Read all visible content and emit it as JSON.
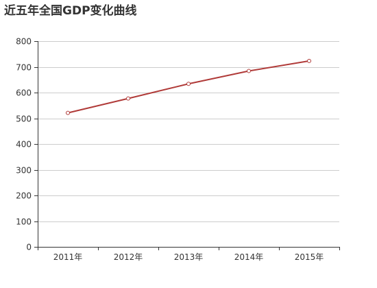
{
  "chart_data": {
    "type": "line",
    "title": "近五年全国GDP变化曲线",
    "categories": [
      "2011年",
      "2012年",
      "2013年",
      "2014年",
      "2015年"
    ],
    "series": [
      {
        "values": [
          521,
          577,
          634,
          684,
          723
        ]
      }
    ],
    "xlabel": "",
    "ylabel": "",
    "ylim": [
      0,
      800
    ],
    "yticks": [
      0,
      100,
      200,
      300,
      400,
      500,
      600,
      700,
      800
    ],
    "grid": true,
    "legend": "none",
    "colors": {
      "line": "#b03a38",
      "marker_fill": "#ffffff",
      "grid": "#cccccc",
      "axis": "#333333",
      "text": "#333333"
    }
  }
}
